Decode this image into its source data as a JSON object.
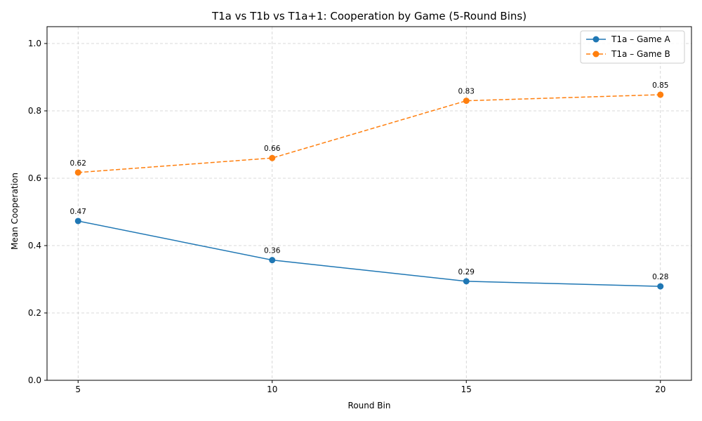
{
  "chart_data": {
    "type": "line",
    "title": "T1a vs T1b vs T1a+1: Cooperation by Game (5-Round Bins)",
    "xlabel": "Round Bin",
    "ylabel": "Mean Cooperation",
    "x": [
      5,
      10,
      15,
      20
    ],
    "x_ticks": [
      "5",
      "10",
      "15",
      "20"
    ],
    "y_ticks": [
      "0.0",
      "0.2",
      "0.4",
      "0.6",
      "0.8",
      "1.0"
    ],
    "xlim": [
      4.2,
      20.8
    ],
    "ylim": [
      0.0,
      1.05
    ],
    "grid": true,
    "legend_position": "top-right",
    "series": [
      {
        "name": "T1a – Game A",
        "values": [
          0.473,
          0.357,
          0.294,
          0.279
        ],
        "labels": [
          "0.47",
          "0.36",
          "0.29",
          "0.28"
        ],
        "color": "#1f77b4",
        "line_style": "solid"
      },
      {
        "name": "T1a – Game B",
        "values": [
          0.617,
          0.66,
          0.83,
          0.848
        ],
        "labels": [
          "0.62",
          "0.66",
          "0.83",
          "0.85"
        ],
        "color": "#ff7f0e",
        "line_style": "dashed"
      }
    ]
  }
}
